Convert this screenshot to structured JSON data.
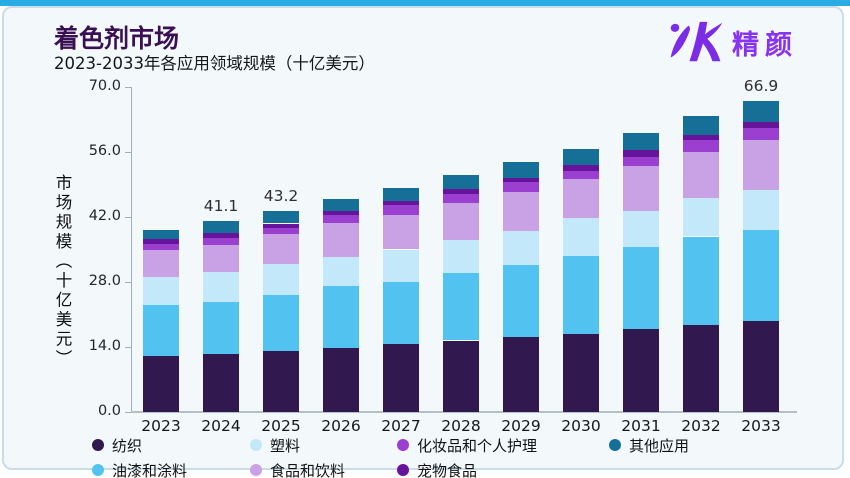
{
  "page": {
    "title": "着色剂市场",
    "subtitle": "2023-2033年各应用领域规模（十亿美元）",
    "accent_color": "#29ace4",
    "title_color": "#3a1055"
  },
  "logo": {
    "text": "精颜",
    "color": "#8833ef"
  },
  "chart_data": {
    "type": "bar",
    "stacked": true,
    "title": "着色剂市场",
    "subtitle": "2023-2033年各应用领域规模（十亿美元）",
    "xlabel": "",
    "ylabel": "市场规模（十亿美元）",
    "ylim": [
      0,
      70
    ],
    "yticks": [
      "0.0",
      "14.0",
      "28.0",
      "42.0",
      "56.0",
      "70.0"
    ],
    "grid": false,
    "legend_position": "bottom",
    "categories": [
      "2023",
      "2024",
      "2025",
      "2026",
      "2027",
      "2028",
      "2029",
      "2030",
      "2031",
      "2032",
      "2033"
    ],
    "series": [
      {
        "name": "纺织",
        "color": "#31184f",
        "values": [
          12.0,
          12.5,
          13.1,
          13.8,
          14.6,
          15.4,
          16.1,
          16.8,
          17.9,
          18.8,
          19.6
        ]
      },
      {
        "name": "油漆和涂料",
        "color": "#52c3f1",
        "values": [
          11.1,
          11.2,
          12.1,
          13.3,
          13.4,
          14.6,
          15.6,
          16.9,
          17.7,
          19.0,
          19.6
        ]
      },
      {
        "name": "塑料",
        "color": "#c3e8f9",
        "values": [
          5.9,
          6.4,
          6.6,
          6.3,
          7.0,
          7.0,
          7.2,
          8.0,
          7.7,
          8.2,
          8.6
        ]
      },
      {
        "name": "食品和饮料",
        "color": "#c9a1e5",
        "values": [
          5.9,
          5.8,
          6.5,
          7.3,
          7.5,
          8.1,
          8.4,
          8.4,
          9.7,
          10.1,
          10.7
        ]
      },
      {
        "name": "化妆品和个人护理",
        "color": "#9b3fd1",
        "values": [
          1.2,
          1.6,
          1.4,
          1.7,
          2.0,
          1.8,
          2.2,
          1.9,
          2.0,
          2.4,
          2.6
        ]
      },
      {
        "name": "宠物食品",
        "color": "#66149c",
        "values": [
          1.1,
          1.1,
          0.9,
          0.9,
          1.0,
          1.1,
          1.0,
          1.2,
          1.4,
          1.2,
          1.4
        ]
      },
      {
        "name": "其他应用",
        "color": "#156f96",
        "values": [
          2.1,
          2.5,
          2.6,
          2.5,
          2.7,
          3.1,
          3.3,
          3.4,
          3.6,
          4.0,
          4.4
        ]
      }
    ],
    "totals": [
      39.3,
      41.1,
      43.2,
      45.8,
      48.2,
      51.1,
      53.8,
      56.6,
      60.0,
      63.7,
      66.9
    ],
    "annotated_totals": [
      {
        "category": "2024",
        "label": "41.1"
      },
      {
        "category": "2025",
        "label": "43.2"
      },
      {
        "category": "2033",
        "label": "66.9"
      }
    ]
  },
  "legend": {
    "row1": [
      "纺织",
      "塑料",
      "化妆品和个人护理",
      "其他应用"
    ],
    "row2": [
      "油漆和涂料",
      "食品和饮料",
      "宠物食品"
    ]
  }
}
